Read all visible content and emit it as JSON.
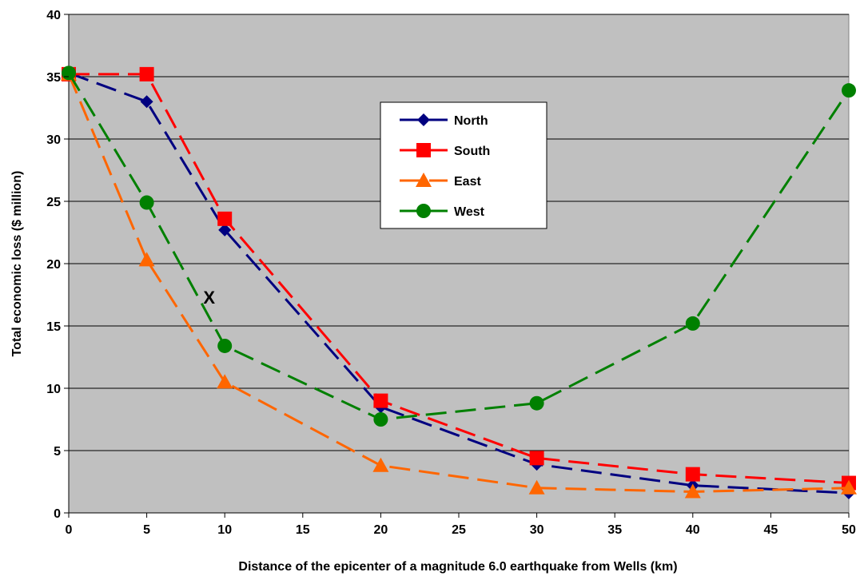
{
  "chart_data": {
    "type": "line",
    "xlabel": "Distance of the epicenter of a magnitude 6.0 earthquake from Wells (km)",
    "ylabel": "Total economic loss ($ million)",
    "xlim": [
      0,
      50
    ],
    "ylim": [
      0,
      40
    ],
    "x_ticks": [
      0,
      5,
      10,
      15,
      20,
      25,
      30,
      35,
      40,
      45,
      50
    ],
    "y_ticks": [
      0,
      5,
      10,
      15,
      20,
      25,
      30,
      35,
      40
    ],
    "grid": "horizontal",
    "plot_background": "#c0c0c0",
    "legend_position": "upper-center-right",
    "series": [
      {
        "name": "North",
        "color": "#000080",
        "marker": "diamond",
        "x": [
          0,
          5,
          10,
          20,
          30,
          40,
          50
        ],
        "y": [
          35.3,
          33.0,
          22.7,
          8.5,
          3.9,
          2.2,
          1.6
        ]
      },
      {
        "name": "South",
        "color": "#ff0000",
        "marker": "square",
        "x": [
          0,
          5,
          10,
          20,
          30,
          40,
          50
        ],
        "y": [
          35.2,
          35.2,
          23.6,
          9.0,
          4.4,
          3.1,
          2.4
        ]
      },
      {
        "name": "East",
        "color": "#ff6600",
        "marker": "triangle",
        "x": [
          0,
          5,
          10,
          20,
          30,
          40,
          50
        ],
        "y": [
          35.2,
          20.3,
          10.5,
          3.8,
          2.0,
          1.7,
          2.0
        ]
      },
      {
        "name": "West",
        "color": "#008000",
        "marker": "circle",
        "x": [
          0,
          5,
          10,
          20,
          30,
          40,
          50
        ],
        "y": [
          35.3,
          24.9,
          13.4,
          7.5,
          8.8,
          15.2,
          33.9
        ]
      }
    ],
    "annotations": [
      {
        "text": "X",
        "x": 9,
        "y": 16.8
      }
    ]
  }
}
